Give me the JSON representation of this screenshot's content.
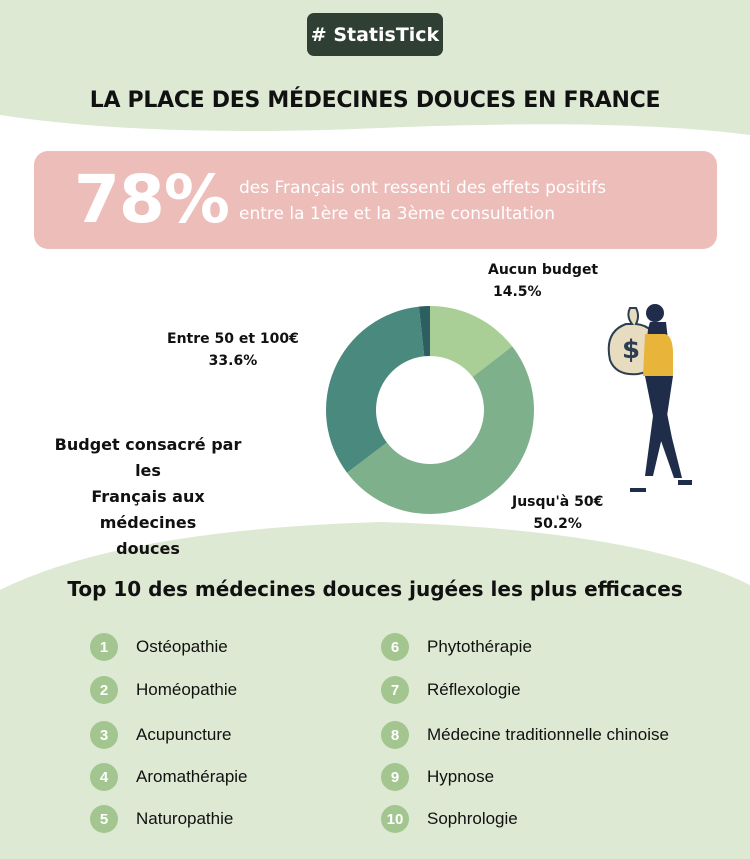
{
  "header": {
    "tag": "# StatisTick",
    "title": "LA PLACE DES MÉDECINES DOUCES EN FRANCE"
  },
  "highlight": {
    "value": "78%",
    "line1": "des Français ont ressenti des effets positifs",
    "line2": "entre la 1ère et la 3ème consultation"
  },
  "chart_data": {
    "type": "pie",
    "title": "Budget consacré par les Français aux médecines douces",
    "title_lines": [
      "Budget consacré par les",
      "Français aux médecines",
      "douces"
    ],
    "donut": true,
    "slices": [
      {
        "label": "Aucun budget",
        "value": 14.5,
        "value_label": "14.5%",
        "color": "#a9cf97"
      },
      {
        "label": "Jusqu'à 50€",
        "value": 50.2,
        "value_label": "50.2%",
        "color": "#7fb08c"
      },
      {
        "label": "Entre 50 et 100€",
        "value": 33.6,
        "value_label": "33.6%",
        "color": "#4a8a7e"
      },
      {
        "label": "",
        "value": 1.7,
        "value_label": "",
        "color": "#2c5e62"
      }
    ]
  },
  "top10": {
    "title": "Top 10 des médecines douces jugées les plus efficaces",
    "items": [
      {
        "n": "1",
        "label": "Ostéopathie"
      },
      {
        "n": "2",
        "label": "Homéopathie"
      },
      {
        "n": "3",
        "label": "Acupuncture"
      },
      {
        "n": "4",
        "label": "Aromathérapie"
      },
      {
        "n": "5",
        "label": "Naturopathie"
      },
      {
        "n": "6",
        "label": "Phytothérapie"
      },
      {
        "n": "7",
        "label": "Réflexologie"
      },
      {
        "n": "8",
        "label": "Médecine traditionnelle chinoise"
      },
      {
        "n": "9",
        "label": "Hypnose"
      },
      {
        "n": "10",
        "label": "Sophrologie"
      }
    ]
  },
  "colors": {
    "bg_green": "#dde9d3",
    "pink": "#ecbdb9",
    "tag_bg": "#2f3f34",
    "num_circle": "#a3c58f"
  }
}
